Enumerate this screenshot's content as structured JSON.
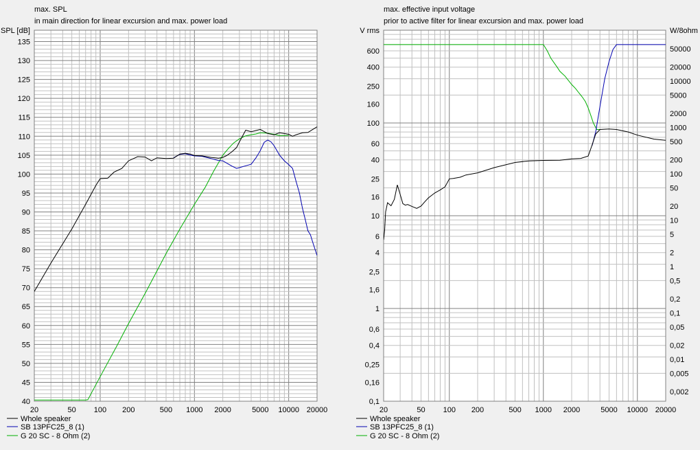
{
  "colors": {
    "whole": "#000000",
    "sb": "#0000b0",
    "g20": "#00b000",
    "grid_major": "#808080",
    "grid_minor": "#c0c0c0",
    "plot_bg": "#ffffff",
    "window_bg": "#f0f0f0"
  },
  "chart_data": [
    {
      "type": "line",
      "title": "max. SPL",
      "subtitle": "in main direction for linear excursion and max. power load",
      "ylabel": "SPL [dB]",
      "xlabel": "",
      "xscale": "log",
      "xlim": [
        20,
        20000
      ],
      "ylim": [
        40,
        138
      ],
      "xticks": [
        20,
        50,
        100,
        200,
        500,
        1000,
        2000,
        5000,
        10000,
        20000
      ],
      "yticks": [
        40,
        45,
        50,
        55,
        60,
        65,
        70,
        75,
        80,
        85,
        90,
        95,
        100,
        105,
        110,
        115,
        120,
        125,
        130,
        135
      ],
      "grid": true,
      "legend": "bottom-left",
      "series": [
        {
          "name": "Whole speaker",
          "color_key": "whole",
          "x": [
            20,
            30,
            50,
            70,
            90,
            100,
            120,
            140,
            170,
            200,
            250,
            300,
            350,
            400,
            500,
            600,
            700,
            800,
            900,
            1000,
            1200,
            1500,
            1800,
            2000,
            2200,
            2500,
            2800,
            3000,
            3500,
            4000,
            4500,
            5000,
            6000,
            7000,
            8000,
            9000,
            10000,
            11000,
            12000,
            14000,
            16000,
            18000,
            20000
          ],
          "y": [
            69.0,
            76.5,
            85.5,
            92.0,
            97.0,
            98.8,
            98.9,
            100.5,
            101.5,
            103.5,
            104.6,
            104.5,
            103.5,
            104.3,
            104.1,
            104.2,
            105.3,
            105.5,
            105.3,
            104.9,
            104.8,
            104.4,
            104.2,
            104.4,
            104.9,
            105.9,
            107.0,
            108.5,
            111.6,
            111.2,
            111.5,
            111.8,
            110.7,
            110.4,
            110.9,
            110.7,
            110.5,
            110.0,
            110.4,
            110.9,
            111.0,
            111.8,
            112.5
          ]
        },
        {
          "name": "SB 13PFC25_8 (1)",
          "color_key": "sb",
          "x": [
            600,
            700,
            800,
            900,
            1000,
            1200,
            1500,
            1800,
            2000,
            2200,
            2500,
            2800,
            3000,
            3500,
            4000,
            4500,
            5000,
            5500,
            6000,
            6500,
            7000,
            8000,
            9000,
            10000,
            11000,
            12000,
            13000,
            14000,
            15000,
            16000,
            17000,
            18000,
            20000
          ],
          "y": [
            104.3,
            105.2,
            105.4,
            105.0,
            104.8,
            104.7,
            104.1,
            103.6,
            103.5,
            102.9,
            102.1,
            101.5,
            101.7,
            102.2,
            102.6,
            104.3,
            106.2,
            108.4,
            109.0,
            108.5,
            107.5,
            105.0,
            103.5,
            102.5,
            101.5,
            98.0,
            95.0,
            91.0,
            88.0,
            85.0,
            84.0,
            82.0,
            78.5
          ]
        },
        {
          "name": "G 20 SC - 8 Ohm (2)",
          "color_key": "g20",
          "x": [
            20,
            50,
            70,
            74,
            100,
            150,
            200,
            300,
            400,
            500,
            700,
            1000,
            1300,
            1600,
            1800,
            2000,
            2300,
            2600,
            3000,
            3500,
            4000,
            4500,
            5000,
            6000,
            7000,
            8000,
            9000,
            10000
          ],
          "y": [
            40.3,
            40.3,
            40.3,
            40.4,
            46.5,
            54.6,
            60.5,
            68.5,
            74.4,
            79.0,
            85.5,
            92.0,
            96.5,
            100.8,
            103.0,
            105.0,
            106.8,
            108.2,
            109.3,
            110.1,
            110.4,
            110.6,
            110.9,
            110.8,
            110.5,
            110.2,
            110.2,
            110.2
          ]
        }
      ]
    },
    {
      "type": "line",
      "title": "max. effective input voltage",
      "subtitle": "prior to active filter for linear excursion and max. power load",
      "ylabel": "V rms",
      "y2label": "W/8ohm",
      "xlabel": "",
      "xscale": "log",
      "yscale": "log",
      "xlim": [
        20,
        20000
      ],
      "ylim": [
        0.1,
        1000
      ],
      "xticks": [
        20,
        50,
        100,
        200,
        500,
        1000,
        2000,
        5000,
        10000,
        20000
      ],
      "y_tick_labels": [
        "0,1",
        "0,16",
        "0,25",
        "0,4",
        "0,6",
        "1",
        "1,6",
        "2,5",
        "4",
        "6",
        "10",
        "16",
        "25",
        "40",
        "60",
        "100",
        "160",
        "250",
        "400",
        "600"
      ],
      "y_tick_values": [
        0.1,
        0.16,
        0.25,
        0.4,
        0.6,
        1,
        1.6,
        2.5,
        4,
        6,
        10,
        16,
        25,
        40,
        60,
        100,
        160,
        250,
        400,
        600
      ],
      "y2_tick_labels": [
        "0,002",
        "0,005",
        "0,01",
        "0,02",
        "0,05",
        "0,1",
        "0,2",
        "0,5",
        "1",
        "2",
        "5",
        "10",
        "20",
        "50",
        "100",
        "200",
        "500",
        "1000",
        "2000",
        "5000",
        "10000",
        "20000",
        "50000"
      ],
      "y2_tick_values": [
        0.002,
        0.005,
        0.01,
        0.02,
        0.05,
        0.1,
        0.2,
        0.5,
        1,
        2,
        5,
        10,
        20,
        50,
        100,
        200,
        500,
        1000,
        2000,
        5000,
        10000,
        20000,
        50000
      ],
      "grid": true,
      "legend": "bottom-left",
      "series": [
        {
          "name": "Whole speaker",
          "color_key": "whole",
          "x": [
            20,
            20.5,
            21,
            22,
            24,
            26,
            28,
            30,
            32,
            34,
            36,
            40,
            45,
            50,
            55,
            60,
            70,
            80,
            90,
            100,
            110,
            130,
            150,
            200,
            300,
            500,
            700,
            1000,
            1500,
            2000,
            2500,
            3000,
            3300,
            3600,
            4000,
            5000,
            6000,
            8000,
            10000,
            15000,
            20000
          ],
          "y": [
            5.5,
            7.0,
            11.0,
            13.8,
            12.8,
            15.0,
            21.5,
            17.0,
            13.5,
            13.0,
            13.2,
            12.6,
            12.0,
            12.7,
            14.2,
            15.6,
            17.6,
            19.0,
            20.5,
            25.0,
            25.2,
            26.0,
            27.5,
            29.0,
            33.0,
            37.5,
            39.0,
            39.5,
            39.7,
            41.0,
            41.5,
            44.0,
            58.0,
            76.0,
            85.0,
            86.0,
            85.0,
            80.0,
            74.0,
            67.0,
            65.0
          ]
        },
        {
          "name": "SB 13PFC25_8 (1)",
          "color_key": "sb",
          "x": [
            3300,
            3600,
            4000,
            4500,
            5000,
            5500,
            6000,
            7000,
            10000,
            20000
          ],
          "y": [
            57.0,
            80.0,
            150.0,
            300.0,
            460.0,
            620.0,
            700.0,
            700.0,
            700.0,
            700.0
          ]
        },
        {
          "name": "G 20 SC - 8 Ohm (2)",
          "color_key": "g20",
          "x": [
            20,
            500,
            1000,
            1100,
            1200,
            1400,
            1500,
            1700,
            2000,
            2200,
            2400,
            2600,
            2800,
            3000,
            3200,
            3400,
            3700,
            4000
          ],
          "y": [
            700.0,
            700.0,
            700.0,
            600.0,
            500.0,
            400.0,
            360.0,
            320.0,
            260.0,
            235.0,
            210.0,
            190.0,
            170.0,
            145.0,
            120.0,
            100.0,
            85.0,
            85.0
          ]
        }
      ]
    }
  ]
}
